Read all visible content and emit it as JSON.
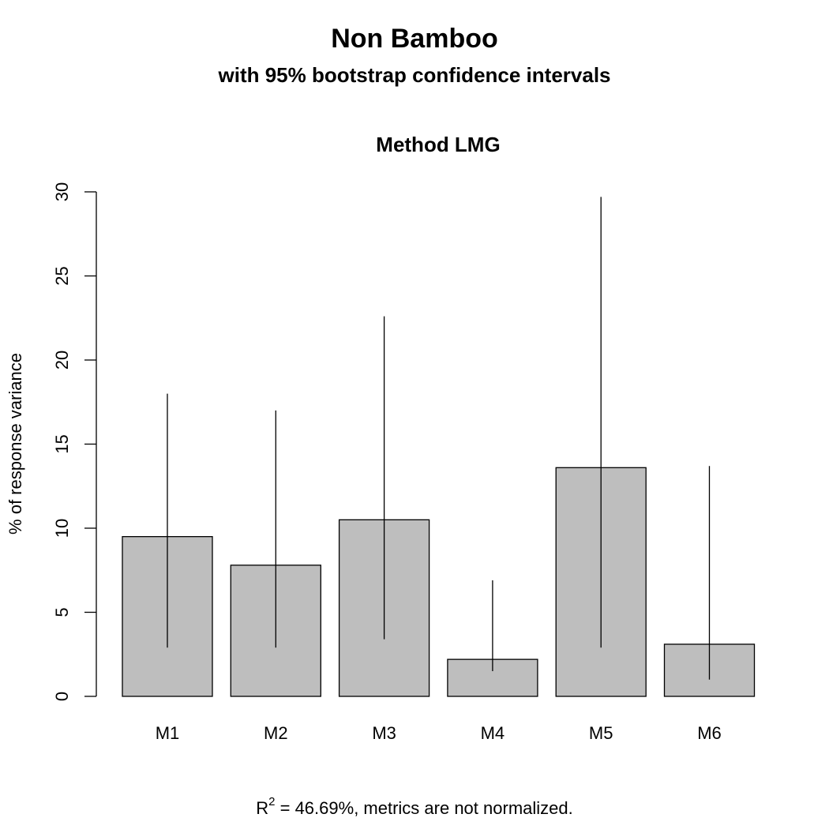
{
  "chart_data": {
    "type": "bar",
    "title": "Non Bamboo",
    "subtitle": "with 95% bootstrap confidence intervals",
    "plot_title": "Method LMG",
    "ylabel": "% of response variance",
    "xlabel": "",
    "categories": [
      "M1",
      "M2",
      "M3",
      "M4",
      "M5",
      "M6"
    ],
    "values": [
      9.5,
      7.8,
      10.5,
      2.2,
      13.6,
      3.1
    ],
    "ci_lower": [
      2.9,
      2.9,
      3.4,
      1.5,
      2.9,
      1.0
    ],
    "ci_upper": [
      18.0,
      17.0,
      22.6,
      6.9,
      29.7,
      13.7
    ],
    "ylim": [
      0,
      30
    ],
    "yticks": [
      0,
      5,
      10,
      15,
      20,
      25,
      30
    ],
    "grid": false,
    "bar_color": "#bebebe",
    "footnote": {
      "r": "R",
      "sup": "2",
      "eq": " = 46.69%, metrics are not normalized."
    }
  }
}
